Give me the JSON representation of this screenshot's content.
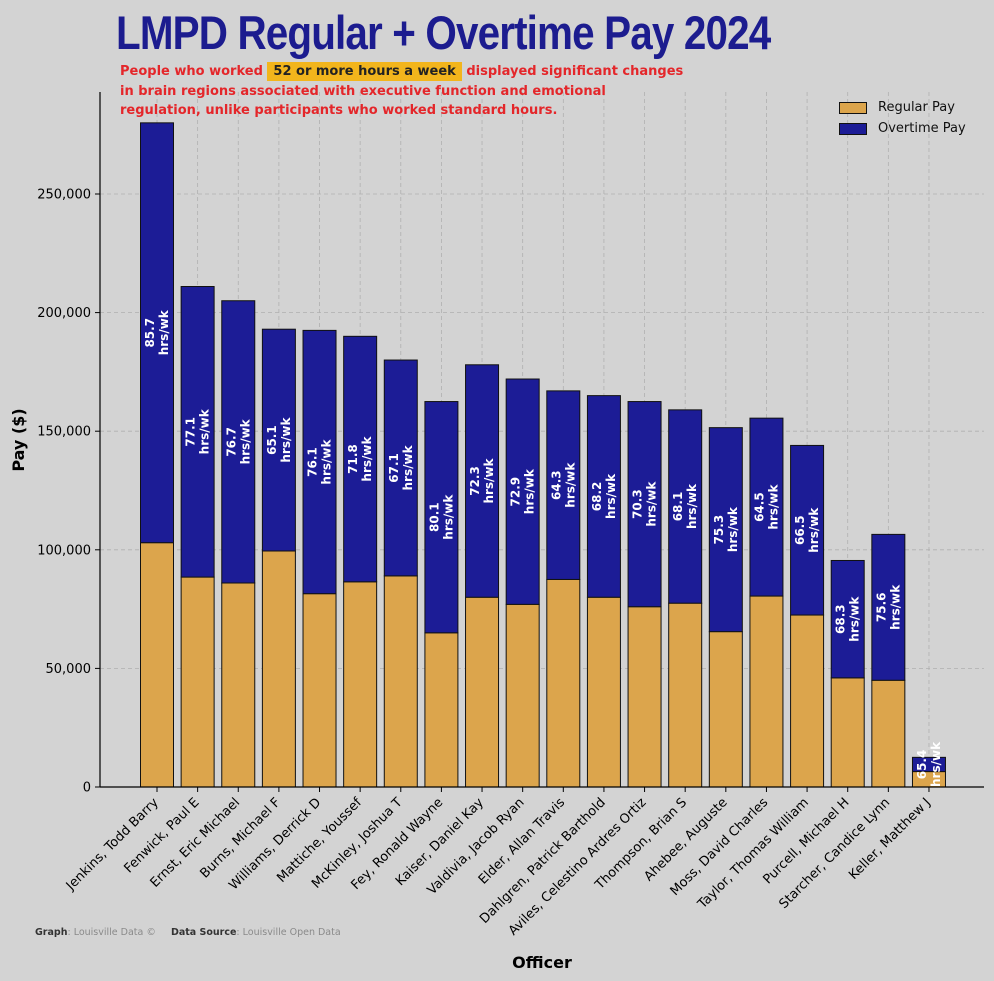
{
  "title": "LMPD Regular + Overtime Pay 2024",
  "note": {
    "before": "People who worked ",
    "highlight": "52 or more hours a week",
    "after": " displayed significant changes in brain regions associated with executive function and emotional regulation, unlike participants who worked standard hours."
  },
  "footer": {
    "graph_label": "Graph",
    "graph_value": ": Louisville Data ©",
    "source_label": "Data Source",
    "source_value": ": Louisville Open Data"
  },
  "colors": {
    "background": "#d3d3d3",
    "regular": "#dca54c",
    "overtime": "#1c1c96",
    "title": "#1c1c8f",
    "note": "#e4262a",
    "highlight": "#f2b51c"
  },
  "chart_data": {
    "type": "bar",
    "stacked": true,
    "xlabel": "Officer",
    "ylabel": "Pay ($)",
    "ylim": [
      0,
      293000
    ],
    "yticks": [
      0,
      50000,
      100000,
      150000,
      200000,
      250000
    ],
    "ytick_labels": [
      "0",
      "50,000",
      "100,000",
      "150,000",
      "200,000",
      "250,000"
    ],
    "grid": true,
    "legend_position": "top-right",
    "categories": [
      "Jenkins, Todd Barry",
      "Fenwick, Paul E",
      "Ernst, Eric Michael",
      "Burns, Michael F",
      "Williams, Derrick D",
      "Mattiche, Youssef",
      "McKinley, Joshua T",
      "Fey, Ronald Wayne",
      "Kaiser, Daniel Kay",
      "Valdivia, Jacob Ryan",
      "Elder, Allan Travis",
      "Dahlgren, Patrick Barthold",
      "Aviles, Celestino Ardres Ortiz",
      "Thompson, Brian S",
      "Ahebee, Auguste",
      "Moss, David Charles",
      "Taylor, Thomas William",
      "Purcell, Michael H",
      "Starcher, Candice Lynn",
      "Keller, Matthew J"
    ],
    "series": [
      {
        "name": "Regular Pay",
        "values": [
          103000,
          88500,
          86000,
          99500,
          81500,
          86500,
          89000,
          65000,
          80000,
          77000,
          87500,
          80000,
          76000,
          77500,
          65500,
          80500,
          72500,
          46000,
          45000,
          6500
        ]
      },
      {
        "name": "Overtime Pay",
        "values": [
          177000,
          122500,
          119000,
          93500,
          111000,
          103500,
          91000,
          97500,
          98000,
          95000,
          79500,
          85000,
          86500,
          81500,
          86000,
          75000,
          71500,
          49500,
          61500,
          6000
        ]
      }
    ],
    "bar_labels": [
      "85.7",
      "77.1",
      "76.7",
      "65.1",
      "76.1",
      "71.8",
      "67.1",
      "80.1",
      "72.3",
      "72.9",
      "64.3",
      "68.2",
      "70.3",
      "68.1",
      "75.3",
      "64.5",
      "66.5",
      "68.3",
      "75.6",
      "65.4"
    ],
    "bar_label_unit": "hrs/wk"
  }
}
